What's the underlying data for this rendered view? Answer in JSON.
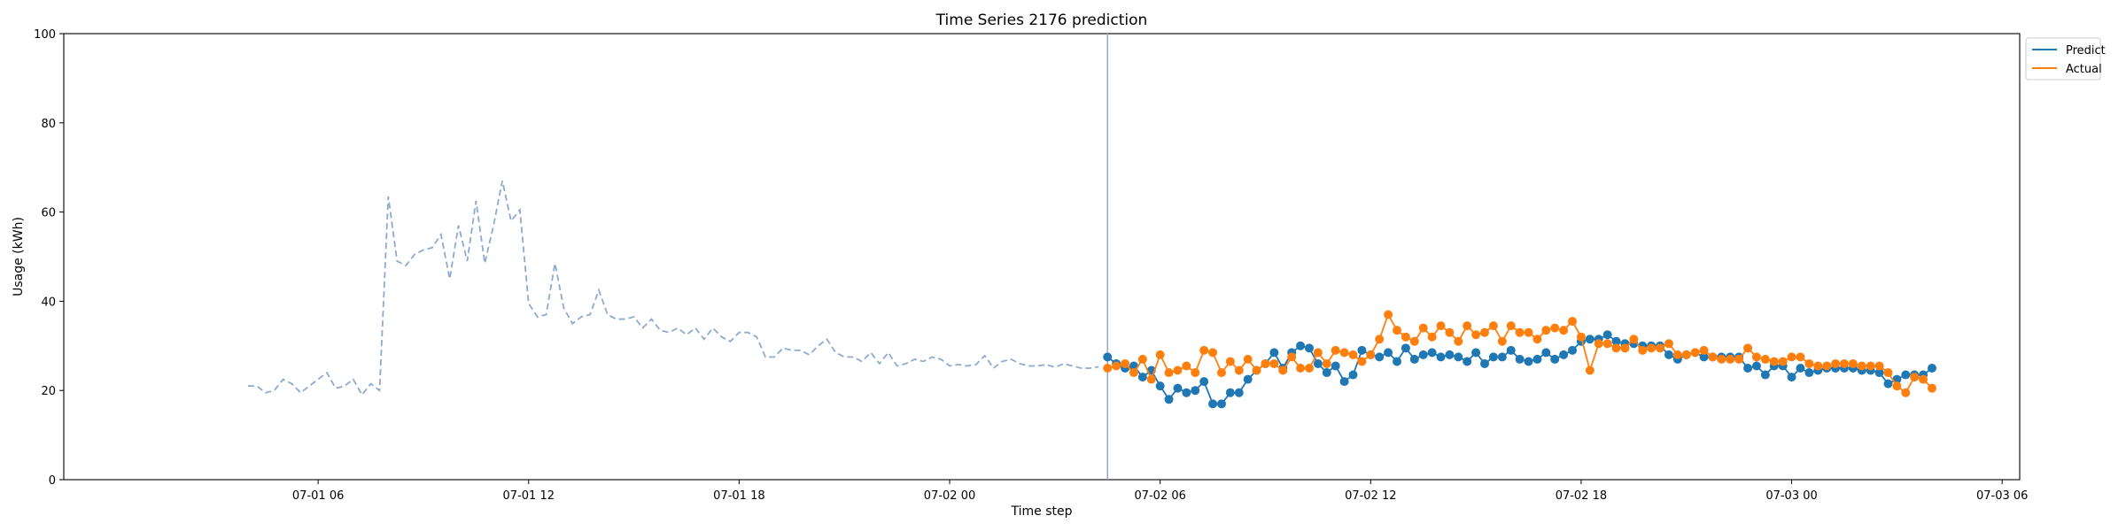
{
  "chart_data": {
    "type": "line",
    "title": "Time Series 2176 prediction",
    "xlabel": "Time step",
    "ylabel": "Usage (kWh)",
    "ylim": [
      0,
      100
    ],
    "yticks": [
      0,
      20,
      40,
      60,
      80,
      100
    ],
    "xlim_hours": [
      -1.25,
      54.5
    ],
    "x_unit": "hours since 07-01 00:00",
    "xticks": [
      {
        "hour": 6,
        "label": "07-01 06"
      },
      {
        "hour": 12,
        "label": "07-01 12"
      },
      {
        "hour": 18,
        "label": "07-01 18"
      },
      {
        "hour": 24,
        "label": "07-02 00"
      },
      {
        "hour": 30,
        "label": "07-02 06"
      },
      {
        "hour": 36,
        "label": "07-02 12"
      },
      {
        "hour": 42,
        "label": "07-02 18"
      },
      {
        "hour": 48,
        "label": "07-03 00"
      },
      {
        "hour": 54,
        "label": "07-03 06"
      }
    ],
    "grid": false,
    "legend_position": "top-right",
    "colors": {
      "history": "#8eaad0",
      "predict": "#1f77b4",
      "actual": "#ff7f0e",
      "split_line": "#8eaad0"
    },
    "split_hour": 28.5,
    "history": {
      "start_hour": 4.0,
      "step_hours": 0.25,
      "values": [
        21,
        21,
        19.5,
        20,
        22.5,
        21.5,
        19.5,
        21,
        22.5,
        24,
        20.5,
        21,
        22.5,
        19,
        21.5,
        20,
        63.5,
        49,
        48,
        50.5,
        51.5,
        52,
        55,
        45,
        57,
        49,
        62.5,
        48.5,
        57,
        67,
        58,
        60.5,
        39.5,
        36.5,
        37,
        48.5,
        38.5,
        35,
        36.5,
        37,
        42.5,
        37,
        36,
        36,
        36.5,
        34,
        36,
        33.5,
        33,
        34,
        32.5,
        34,
        31.5,
        34,
        32,
        31,
        33,
        33,
        32,
        27.5,
        27.5,
        29.5,
        29,
        29,
        28,
        30,
        31.5,
        28.5,
        27.5,
        27.5,
        26.5,
        28.5,
        26,
        28.5,
        25.5,
        26,
        27,
        26.5,
        27.5,
        27,
        25.5,
        25.8,
        25.5,
        25.8,
        27.8,
        25,
        26.5,
        27,
        26,
        25.5,
        25.5,
        25.8,
        25.2,
        26,
        25.5,
        25,
        25,
        25.3
      ]
    },
    "series": [
      {
        "name": "Predict",
        "start_hour": 28.5,
        "step_hours": 0.25,
        "values": [
          27.5,
          26,
          25,
          25.5,
          23,
          24.5,
          21,
          18,
          20.5,
          19.5,
          20,
          22,
          17,
          17,
          19.5,
          19.5,
          22.5,
          24.5,
          26,
          28.5,
          25,
          28.5,
          30,
          29.5,
          26,
          24,
          25.5,
          22,
          23.5,
          29,
          28,
          27.5,
          28.5,
          26.5,
          29.5,
          27,
          28,
          28.5,
          27.5,
          28,
          27.5,
          26.5,
          28.5,
          26,
          27.5,
          27.5,
          29,
          27,
          26.5,
          27,
          28.5,
          27,
          28,
          29,
          31,
          31.5,
          31.5,
          32.5,
          31,
          30.5,
          30.5,
          30,
          30,
          30,
          28,
          27,
          28,
          28.5,
          27.5,
          27.5,
          27.5,
          27.5,
          27.5,
          25,
          25.5,
          23.5,
          25.5,
          25.5,
          23,
          25,
          24,
          24.5,
          25,
          25,
          25,
          25,
          24.5,
          24.5,
          24,
          21.5,
          22.5,
          23.5,
          23.5,
          23.5,
          25
        ]
      },
      {
        "name": "Actual",
        "start_hour": 28.5,
        "step_hours": 0.25,
        "values": [
          25,
          25.5,
          26,
          24,
          27,
          22.5,
          28,
          24,
          24.5,
          25.5,
          24,
          29,
          28.5,
          24,
          26.5,
          24.5,
          27,
          24.5,
          26,
          26,
          24.5,
          27.5,
          25,
          25,
          28.5,
          26,
          29,
          28.5,
          28,
          26.5,
          28,
          31.5,
          37,
          33.5,
          32,
          31,
          34,
          32,
          34.5,
          33,
          31,
          34.5,
          32.5,
          33,
          34.5,
          31,
          34.5,
          33,
          33,
          31.5,
          33.5,
          34,
          33.5,
          35.5,
          32,
          24.5,
          30.5,
          30.5,
          29.5,
          29.5,
          31.5,
          29,
          29.5,
          29.5,
          30.5,
          28,
          28,
          28.5,
          29,
          27.5,
          27,
          27,
          27,
          29.5,
          27.5,
          27,
          26.5,
          26.5,
          27.5,
          27.5,
          26,
          25.5,
          25.5,
          26,
          26,
          26,
          25.5,
          25.5,
          25.5,
          24,
          21,
          19.5,
          23,
          22.5,
          20.5
        ]
      }
    ]
  }
}
